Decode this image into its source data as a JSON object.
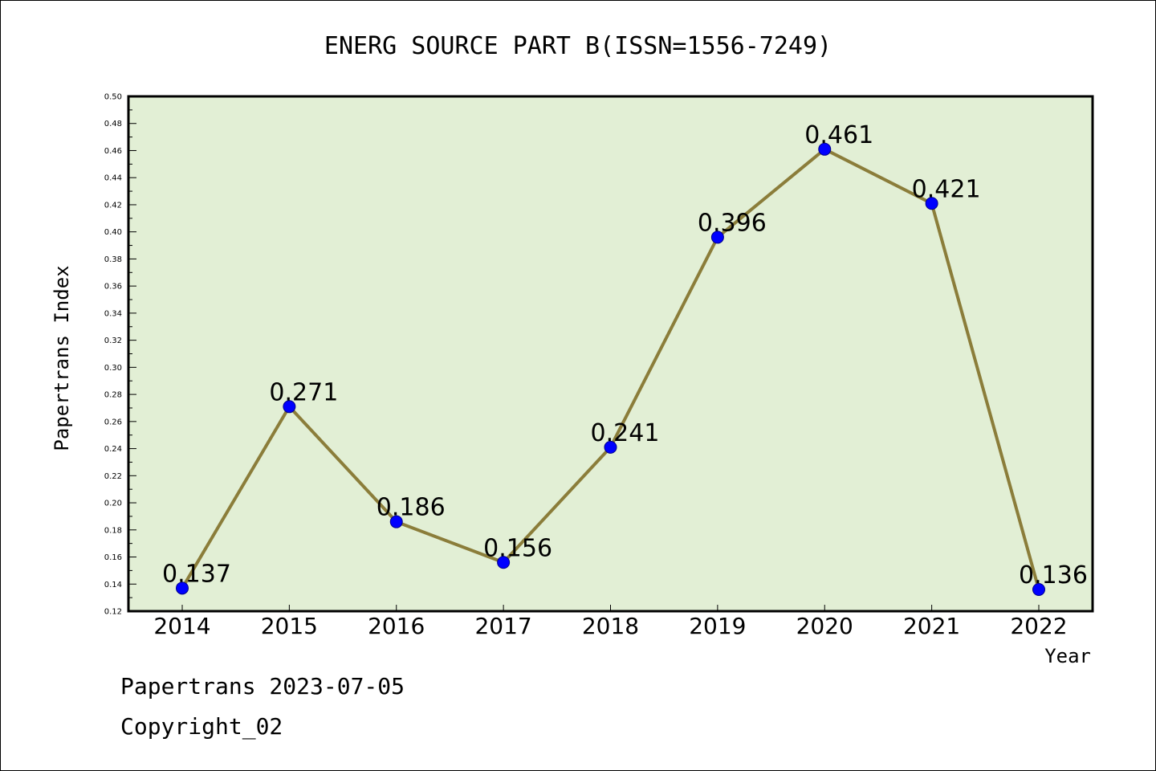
{
  "chart_data": {
    "type": "line",
    "title": "ENERG SOURCE PART B(ISSN=1556-7249)",
    "xlabel": "Year",
    "ylabel": "Papertrans Index",
    "categories": [
      "2014",
      "2015",
      "2016",
      "2017",
      "2018",
      "2019",
      "2020",
      "2021",
      "2022"
    ],
    "series": [
      {
        "values": [
          0.137,
          0.271,
          0.186,
          0.156,
          0.241,
          0.396,
          0.461,
          0.421,
          0.136
        ],
        "labels": [
          "0.137",
          "0.271",
          "0.186",
          "0.156",
          "0.241",
          "0.396",
          "0.461",
          "0.421",
          "0.136"
        ]
      }
    ],
    "ylim": [
      0.12,
      0.5
    ],
    "yticks": [
      "0.12",
      "0.14",
      "0.16",
      "0.18",
      "0.20",
      "0.22",
      "0.24",
      "0.26",
      "0.28",
      "0.30",
      "0.32",
      "0.34",
      "0.36",
      "0.38",
      "0.40",
      "0.42",
      "0.44",
      "0.46",
      "0.48",
      "0.50"
    ],
    "grid": false,
    "colors": {
      "line": "#8b7d3a",
      "marker": "#0000ff",
      "plot_background": "#e2efd5"
    }
  },
  "footer": {
    "line1": "Papertrans 2023-07-05",
    "line2": "Copyright_02"
  }
}
